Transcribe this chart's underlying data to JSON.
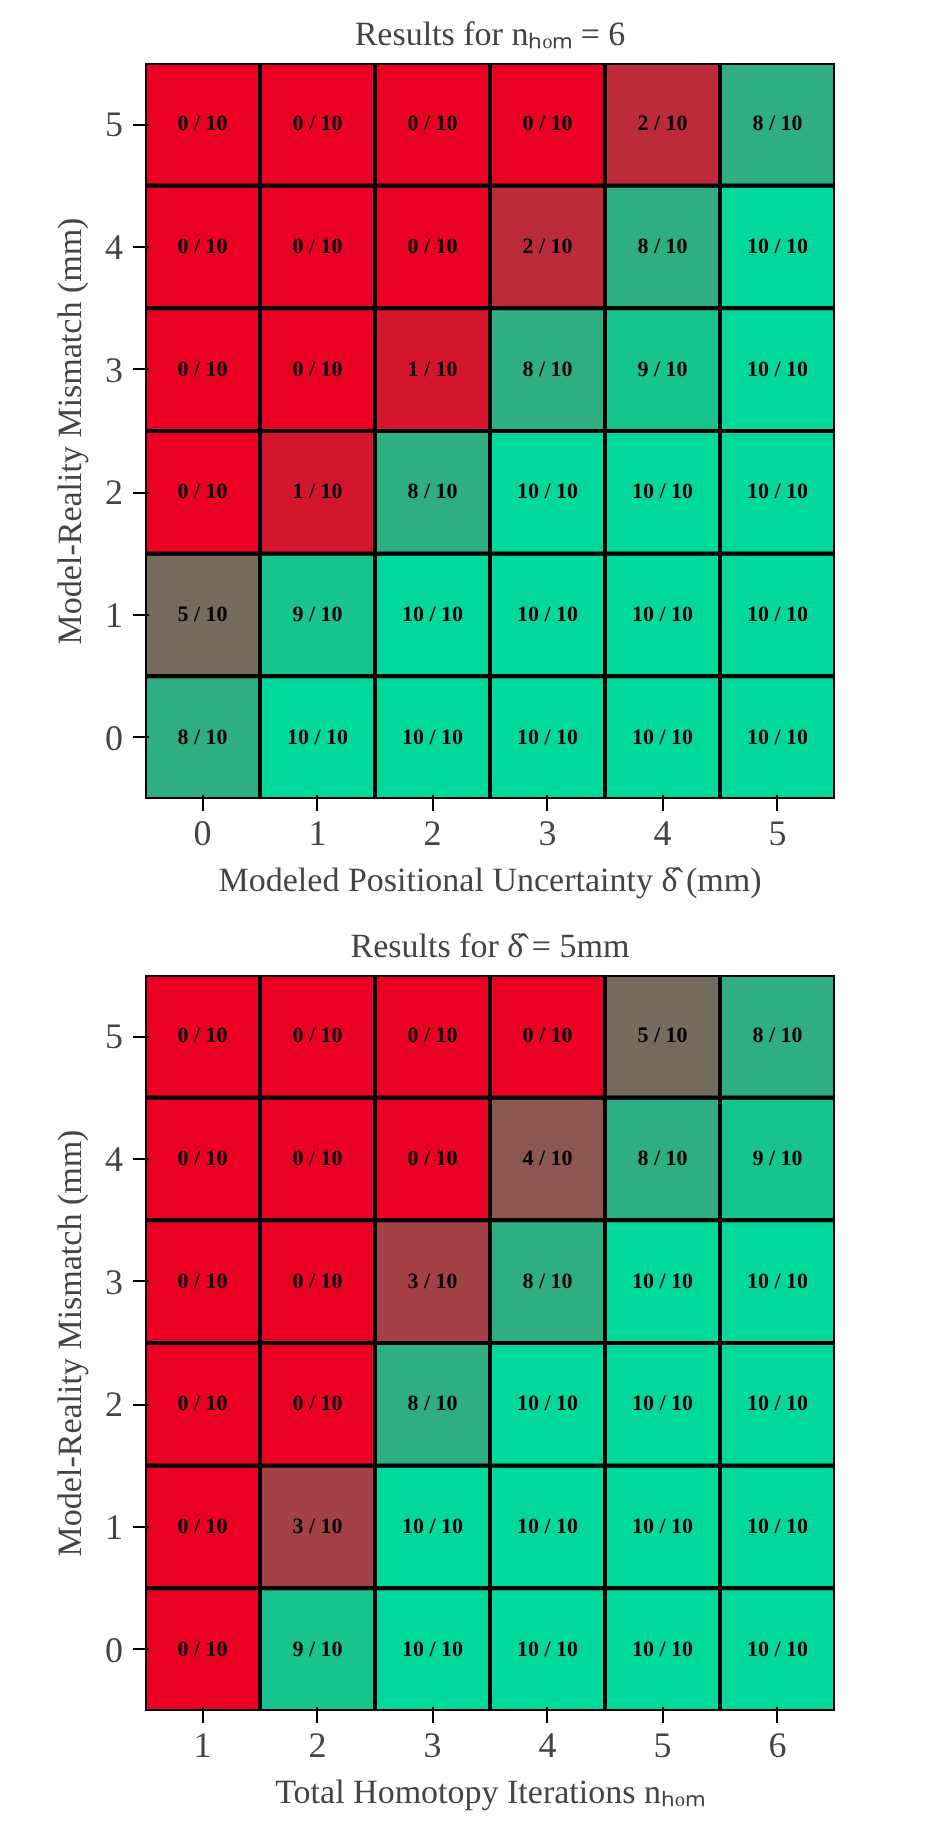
{
  "chart_data": [
    {
      "type": "heatmap",
      "title": "Results for nₕₒₘ = 6",
      "xlabel": "Modeled Positional Uncertainty δ̂ (mm)",
      "ylabel": "Model-Reality Mismatch (mm)",
      "colors": [
        "#ea0022",
        "#00d99b"
      ],
      "categories": [
        "0",
        "1",
        "2",
        "3",
        "4",
        "5"
      ],
      "y_categories": [
        "5",
        "4",
        "3",
        "2",
        "1",
        "0"
      ],
      "cells": [
        [
          0,
          0,
          0,
          0,
          0.2,
          0.8
        ],
        [
          0,
          0,
          0,
          0.2,
          0.8,
          1
        ],
        [
          0,
          0,
          0.1,
          0.8,
          0.9,
          1
        ],
        [
          0,
          0.1,
          0.8,
          1,
          1,
          1
        ],
        [
          0.5,
          0.9,
          1,
          1,
          1,
          1
        ],
        [
          0.8,
          1,
          1,
          1,
          1,
          1
        ]
      ],
      "cell_labels": [
        [
          "0 / 10",
          "0 / 10",
          "0 / 10",
          "0 / 10",
          "2 / 10",
          "8 / 10"
        ],
        [
          "0 / 10",
          "0 / 10",
          "0 / 10",
          "2 / 10",
          "8 / 10",
          "10 / 10"
        ],
        [
          "0 / 10",
          "0 / 10",
          "1 / 10",
          "8 / 10",
          "9 / 10",
          "10 / 10"
        ],
        [
          "0 / 10",
          "1 / 10",
          "8 / 10",
          "10 / 10",
          "10 / 10",
          "10 / 10"
        ],
        [
          "5 / 10",
          "9 / 10",
          "10 / 10",
          "10 / 10",
          "10 / 10",
          "10 / 10"
        ],
        [
          "8 / 10",
          "10 / 10",
          "10 / 10",
          "10 / 10",
          "10 / 10",
          "10 / 10"
        ]
      ]
    },
    {
      "type": "heatmap",
      "title": "Results for δ̂ = 5mm",
      "xlabel": "Total Homotopy Iterations nₕₒₘ",
      "ylabel": "Model-Reality Mismatch (mm)",
      "colors": [
        "#ea0022",
        "#00d99b"
      ],
      "categories": [
        "1",
        "2",
        "3",
        "4",
        "5",
        "6"
      ],
      "y_categories": [
        "5",
        "4",
        "3",
        "2",
        "1",
        "0"
      ],
      "cells": [
        [
          0,
          0,
          0,
          0,
          0.5,
          0.8
        ],
        [
          0,
          0,
          0,
          0.4,
          0.8,
          0.9
        ],
        [
          0,
          0,
          0.3,
          0.8,
          1,
          1
        ],
        [
          0,
          0,
          0.8,
          1,
          1,
          1
        ],
        [
          0,
          0.3,
          1,
          1,
          1,
          1
        ],
        [
          0,
          0.9,
          1,
          1,
          1,
          1
        ]
      ],
      "cell_labels": [
        [
          "0 / 10",
          "0 / 10",
          "0 / 10",
          "0 / 10",
          "5 / 10",
          "8 / 10"
        ],
        [
          "0 / 10",
          "0 / 10",
          "0 / 10",
          "4 / 10",
          "8 / 10",
          "9 / 10"
        ],
        [
          "0 / 10",
          "0 / 10",
          "3 / 10",
          "8 / 10",
          "10 / 10",
          "10 / 10"
        ],
        [
          "0 / 10",
          "0 / 10",
          "8 / 10",
          "10 / 10",
          "10 / 10",
          "10 / 10"
        ],
        [
          "0 / 10",
          "3 / 10",
          "10 / 10",
          "10 / 10",
          "10 / 10",
          "10 / 10"
        ],
        [
          "0 / 10",
          "9 / 10",
          "10 / 10",
          "10 / 10",
          "10 / 10",
          "10 / 10"
        ]
      ]
    }
  ]
}
